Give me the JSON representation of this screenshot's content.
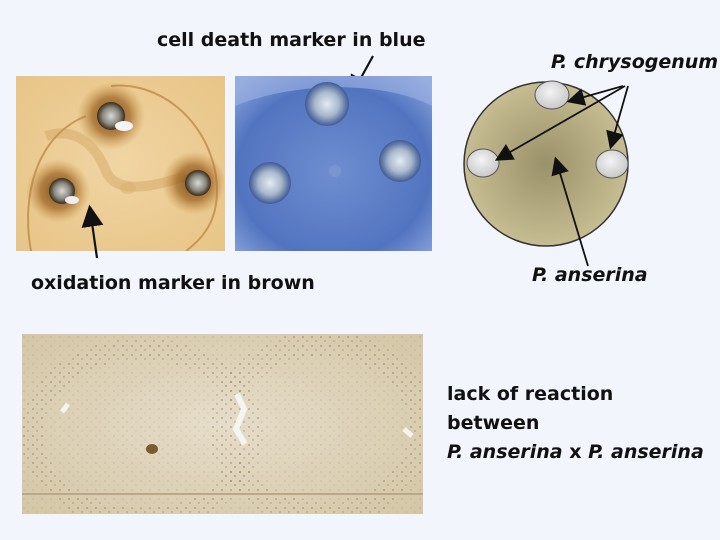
{
  "labels": {
    "cell_death": "cell death marker in blue",
    "oxidation": "oxidation marker in brown",
    "chrysogenum": "P. chrysogenum",
    "anserina": "P. anserina"
  },
  "bottom_text": {
    "line1": "lack of reaction",
    "line2": "between",
    "line3_a": "P. anserina",
    "line3_x": " x ",
    "line3_b": "P. anserina"
  },
  "colors": {
    "background": "#f2f5fb",
    "oxidation_brown": "#a8702c",
    "cell_death_blue": "#5b7cc4",
    "plate_fill": "#bfb489",
    "colony_fill": "#dcdcdc"
  },
  "icons": [
    "arrow-icon"
  ]
}
